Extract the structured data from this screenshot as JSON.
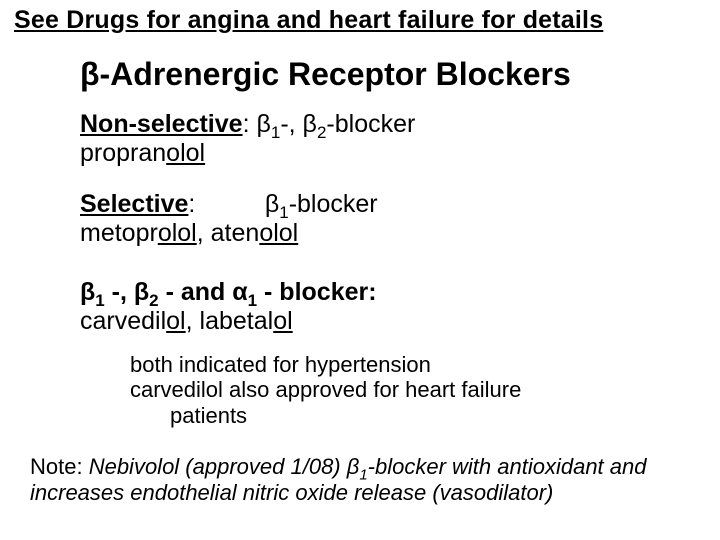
{
  "topLink": "See Drugs for angina and heart failure for details",
  "title_beta": "β",
  "title_rest": "-Adrenergic Receptor Blockers",
  "ns_label": "Non-selective",
  "ns_colon": ":  ",
  "ns_b1": "β",
  "ns_sub1": "1",
  "ns_mid": "-, ",
  "ns_b2": "β",
  "ns_sub2": "2",
  "ns_tail": "-blocker",
  "ns_drug_pre": "propran",
  "ns_drug_u": "olol",
  "sel_label": "Selective",
  "sel_colon": ":",
  "sel_spacer": "          ",
  "sel_b1": "β",
  "sel_sub1": "1",
  "sel_tail": "-blocker",
  "sel_drug1_pre": "metopr",
  "sel_drug1_u": "olol",
  "sel_sep": ", ",
  "sel_drug2_pre": "aten",
  "sel_drug2_u": "olol",
  "mix_b1": "β",
  "mix_sub1": "1",
  "mix_s1": " -, ",
  "mix_b2": "β",
  "mix_sub2": "2",
  "mix_s2": " - and ",
  "mix_a1": "α",
  "mix_suba": "1",
  "mix_s3": " - blocker:",
  "mix_drug1_pre": "carvedil",
  "mix_drug1_u": "ol",
  "mix_sep": ", ",
  "mix_drug2_pre": "labetal",
  "mix_drug2_u": "ol",
  "note_l1": "both indicated for hypertension",
  "note_l2": "carvedilol also approved for heart failure",
  "note_l3": "patients",
  "foot_lead": "Note:  ",
  "foot_pre": "Nebivolol (approved 1/08) ",
  "foot_b": "β",
  "foot_sub": "1",
  "foot_post": "-blocker with antioxidant and increases endothelial nitric oxide release (vasodilator)"
}
